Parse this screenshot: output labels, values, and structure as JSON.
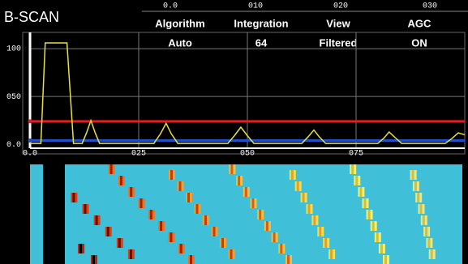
{
  "header": {
    "title": "B-SCAN",
    "top_ticks": [
      "0.0",
      "010",
      "020",
      "030"
    ],
    "settings": [
      {
        "label": "Algorithm",
        "value": "Auto"
      },
      {
        "label": "Integration",
        "value": "64"
      },
      {
        "label": "View",
        "value": "Filtered"
      },
      {
        "label": "AGC",
        "value": "ON"
      }
    ]
  },
  "chart_data": {
    "type": "line",
    "x": [
      0,
      2.5,
      3.5,
      8.5,
      10,
      12,
      13,
      14,
      15,
      16,
      18,
      28.5,
      30,
      31.3,
      32.5,
      34,
      45.5,
      47,
      48.5,
      50,
      51.5,
      62.5,
      64,
      65.3,
      66.5,
      68,
      80,
      81.5,
      82.6,
      84,
      85.5,
      95.5,
      97,
      98.5,
      100
    ],
    "series": [
      {
        "color": "#e8e040",
        "values": [
          1,
          1,
          106,
          106,
          1,
          1,
          12,
          25,
          12,
          1,
          1,
          1,
          11,
          22,
          11,
          1,
          1,
          9,
          18,
          9,
          1,
          1,
          8,
          15,
          8,
          1,
          1,
          7,
          13,
          7,
          1,
          1,
          6,
          12,
          10
        ]
      }
    ],
    "thresholds": [
      {
        "value": 24,
        "color": "#e02020"
      },
      {
        "value": 4,
        "color": "#2050c8"
      }
    ],
    "xlim": [
      0,
      100
    ],
    "xticks": [
      {
        "value": 0,
        "label": "0.0"
      },
      {
        "value": 25,
        "label": "025"
      },
      {
        "value": 50,
        "label": "050"
      },
      {
        "value": 75,
        "label": "075"
      }
    ],
    "ylim": [
      -4,
      117
    ],
    "yticks": [
      {
        "value": 0,
        "label": "0.0"
      },
      {
        "value": 50,
        "label": "050"
      },
      {
        "value": 100,
        "label": "100"
      }
    ],
    "grid": true
  }
}
